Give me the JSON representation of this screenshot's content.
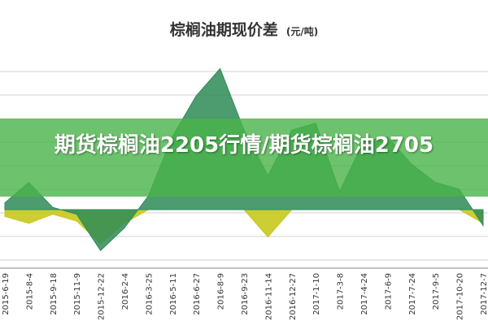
{
  "chart_data": {
    "type": "area",
    "title": "棕榈油期现价差",
    "unit": "(元/吨)",
    "xlabel": "",
    "ylabel": "",
    "grid": true,
    "categories": [
      "2015-6-19",
      "2015-8-4",
      "2015-9-18",
      "2015-11-9",
      "2015-12-22",
      "2016-2-4",
      "2016-3-25",
      "2016-5-11",
      "2016-6-27",
      "2016-8-9",
      "2016-9-23",
      "2016-11-14",
      "2016-12-27",
      "2017-1-10",
      "2017-3-8",
      "2017-4-24",
      "2017-6-9",
      "2017-7-24",
      "2017-9-5",
      "2017-10-20",
      "2017-12-7"
    ],
    "series": [
      {
        "kind": "area",
        "color": "#2e8b57",
        "values": [
          30,
          120,
          10,
          -20,
          -180,
          -80,
          60,
          320,
          500,
          620,
          350,
          150,
          350,
          380,
          80,
          300,
          320,
          200,
          120,
          90,
          -70
        ]
      },
      {
        "kind": "area",
        "color": "#c8c81e",
        "values": [
          -30,
          -60,
          -20,
          -50,
          -150,
          -60,
          0,
          0,
          0,
          0,
          0,
          -120,
          0,
          0,
          0,
          0,
          0,
          0,
          0,
          0,
          -60
        ]
      }
    ]
  },
  "banner": {
    "text": "期货棕榈油2205行情/期货棕榈油2705",
    "bg_color": "#48b448"
  }
}
